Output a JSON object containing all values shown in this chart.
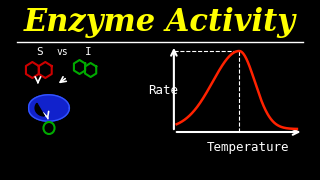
{
  "title": "Enzyme Activity",
  "title_color": "#FFFF00",
  "bg_color": "#000000",
  "line_color": "#FFFFFF",
  "curve_color": "#FF2200",
  "dash_color": "#FFFFFF",
  "rate_label": "Rate",
  "temp_label": "Temperature",
  "s_label": "S",
  "vs_label": "vs",
  "i_label": "I",
  "title_fontsize": 22,
  "label_fontsize": 9,
  "small_fontsize": 8
}
